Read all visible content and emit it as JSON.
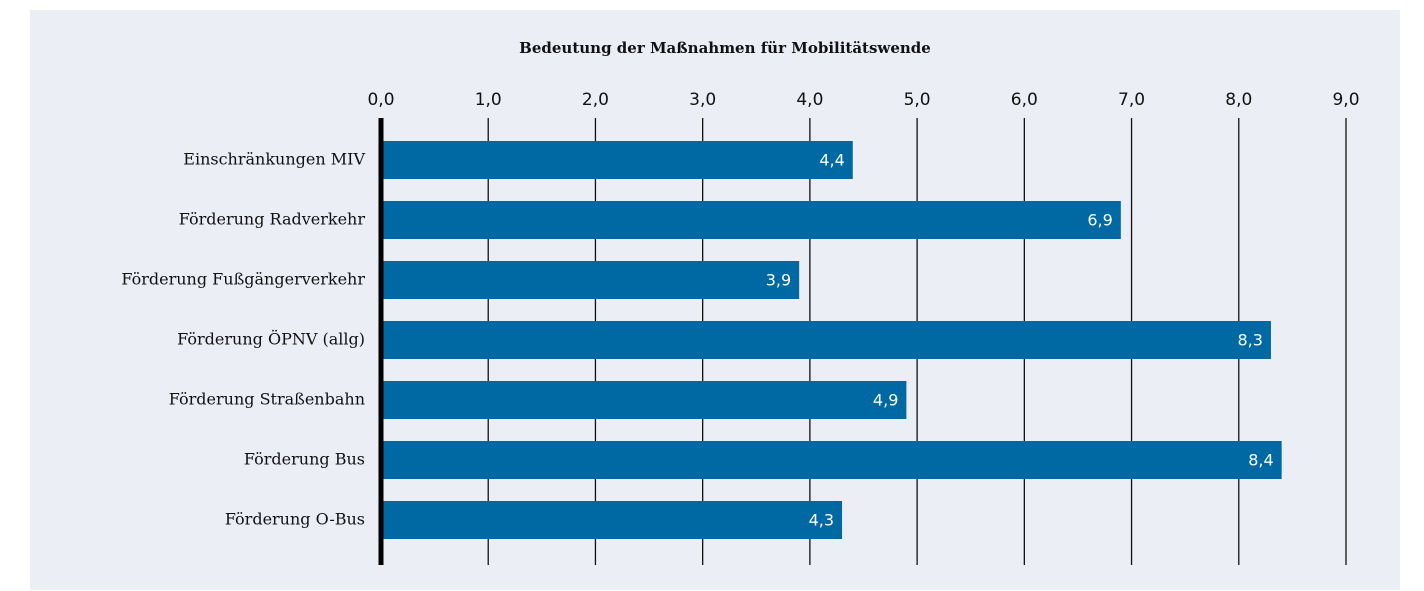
{
  "chart_data": {
    "type": "barh",
    "title": "Bedeutung der Maßnahmen für Mobilitätswende",
    "categories": [
      "Einschränkungen MIV",
      "Förderung Radverkehr",
      "Förderung Fußgängerverkehr",
      "Förderung ÖPNV (allg)",
      "Förderung Straßenbahn",
      "Förderung Bus",
      "Förderung O-Bus"
    ],
    "values": [
      4.4,
      6.9,
      3.9,
      8.3,
      4.9,
      8.4,
      4.3
    ],
    "value_labels": [
      "4,4",
      "6,9",
      "3,9",
      "8,3",
      "4,9",
      "8,4",
      "4,3"
    ],
    "color": "#0068a2",
    "xlim": [
      0,
      9
    ],
    "xticks": [
      {
        "value": 0,
        "label": "0,0"
      },
      {
        "value": 1,
        "label": "1,0"
      },
      {
        "value": 2,
        "label": "2,0"
      },
      {
        "value": 3,
        "label": "3,0"
      },
      {
        "value": 4,
        "label": "4,0"
      },
      {
        "value": 5,
        "label": "5,0"
      },
      {
        "value": 6,
        "label": "6,0"
      },
      {
        "value": 7,
        "label": "7,0"
      },
      {
        "value": 8,
        "label": "8,0"
      },
      {
        "value": 9,
        "label": "9,0"
      }
    ],
    "grid": true
  }
}
